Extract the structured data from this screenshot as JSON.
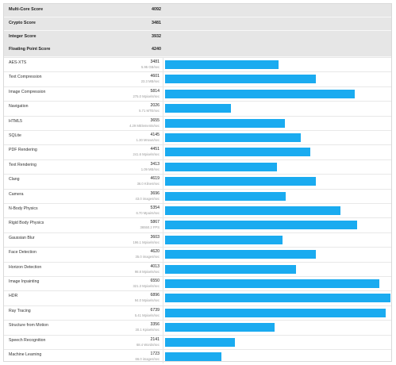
{
  "summary": [
    {
      "label": "Multi-Core Score",
      "value": "4092"
    },
    {
      "label": "Crypto Score",
      "value": "3481"
    },
    {
      "label": "Integer Score",
      "value": "3932"
    },
    {
      "label": "Floating Point Score",
      "value": "4240"
    }
  ],
  "max_score": 6896,
  "colors": {
    "bar": "#1aabf0",
    "summary_bg": "#e6e6e6"
  },
  "chart_data": {
    "type": "bar",
    "orientation": "horizontal",
    "categories": [
      "AES-XTS",
      "Text Compression",
      "Image Compression",
      "Navigation",
      "HTML5",
      "SQLite",
      "PDF Rendering",
      "Text Rendering",
      "Clang",
      "Camera",
      "N-Body Physics",
      "Rigid Body Physics",
      "Gaussian Blur",
      "Face Detection",
      "Horizon Detection",
      "Image Inpainting",
      "HDR",
      "Ray Tracing",
      "Structure from Motion",
      "Speech Recognition",
      "Machine Learning"
    ],
    "values": [
      3481,
      4601,
      5814,
      2026,
      3655,
      4145,
      4451,
      3413,
      4619,
      3696,
      5354,
      5867,
      3603,
      4620,
      4013,
      6550,
      6896,
      6739,
      3356,
      2141,
      1723
    ]
  },
  "benchmarks": [
    {
      "name": "AES-XTS",
      "score": "3481",
      "unit": "5.95 GB/sec"
    },
    {
      "name": "Text Compression",
      "score": "4601",
      "unit": "23.3 MB/sec"
    },
    {
      "name": "Image Compression",
      "score": "5814",
      "unit": "275.0 Mpixels/sec"
    },
    {
      "name": "Navigation",
      "score": "2026",
      "unit": "5.71 MTE/sec"
    },
    {
      "name": "HTML5",
      "score": "3655",
      "unit": "4.29 MElements/sec"
    },
    {
      "name": "SQLite",
      "score": "4145",
      "unit": "1.30 Mrows/sec"
    },
    {
      "name": "PDF Rendering",
      "score": "4451",
      "unit": "241.6 Mpixels/sec"
    },
    {
      "name": "Text Rendering",
      "score": "3413",
      "unit": "1.09 MB/sec"
    },
    {
      "name": "Clang",
      "score": "4619",
      "unit": "36.0 Klines/sec"
    },
    {
      "name": "Camera",
      "score": "3696",
      "unit": "43.0 images/sec"
    },
    {
      "name": "N-Body Physics",
      "score": "5354",
      "unit": "6.70 Mpairs/sec"
    },
    {
      "name": "Rigid Body Physics",
      "score": "5867",
      "unit": "36550.2 FPS"
    },
    {
      "name": "Gaussian Blur",
      "score": "3603",
      "unit": "196.1 Mpixels/sec"
    },
    {
      "name": "Face Detection",
      "score": "4620",
      "unit": "35.0 images/sec"
    },
    {
      "name": "Horizon Detection",
      "score": "4013",
      "unit": "98.8 Mpixels/sec"
    },
    {
      "name": "Image Inpainting",
      "score": "6550",
      "unit": "321.3 Mpixels/sec"
    },
    {
      "name": "HDR",
      "score": "6896",
      "unit": "94.0 Mpixels/sec"
    },
    {
      "name": "Ray Tracing",
      "score": "6739",
      "unit": "5.41 Mpixels/sec"
    },
    {
      "name": "Structure from Motion",
      "score": "3356",
      "unit": "30.1 Kpixels/sec"
    },
    {
      "name": "Speech Recognition",
      "score": "2141",
      "unit": "68.4 Words/sec"
    },
    {
      "name": "Machine Learning",
      "score": "1723",
      "unit": "66.0 images/sec"
    }
  ]
}
